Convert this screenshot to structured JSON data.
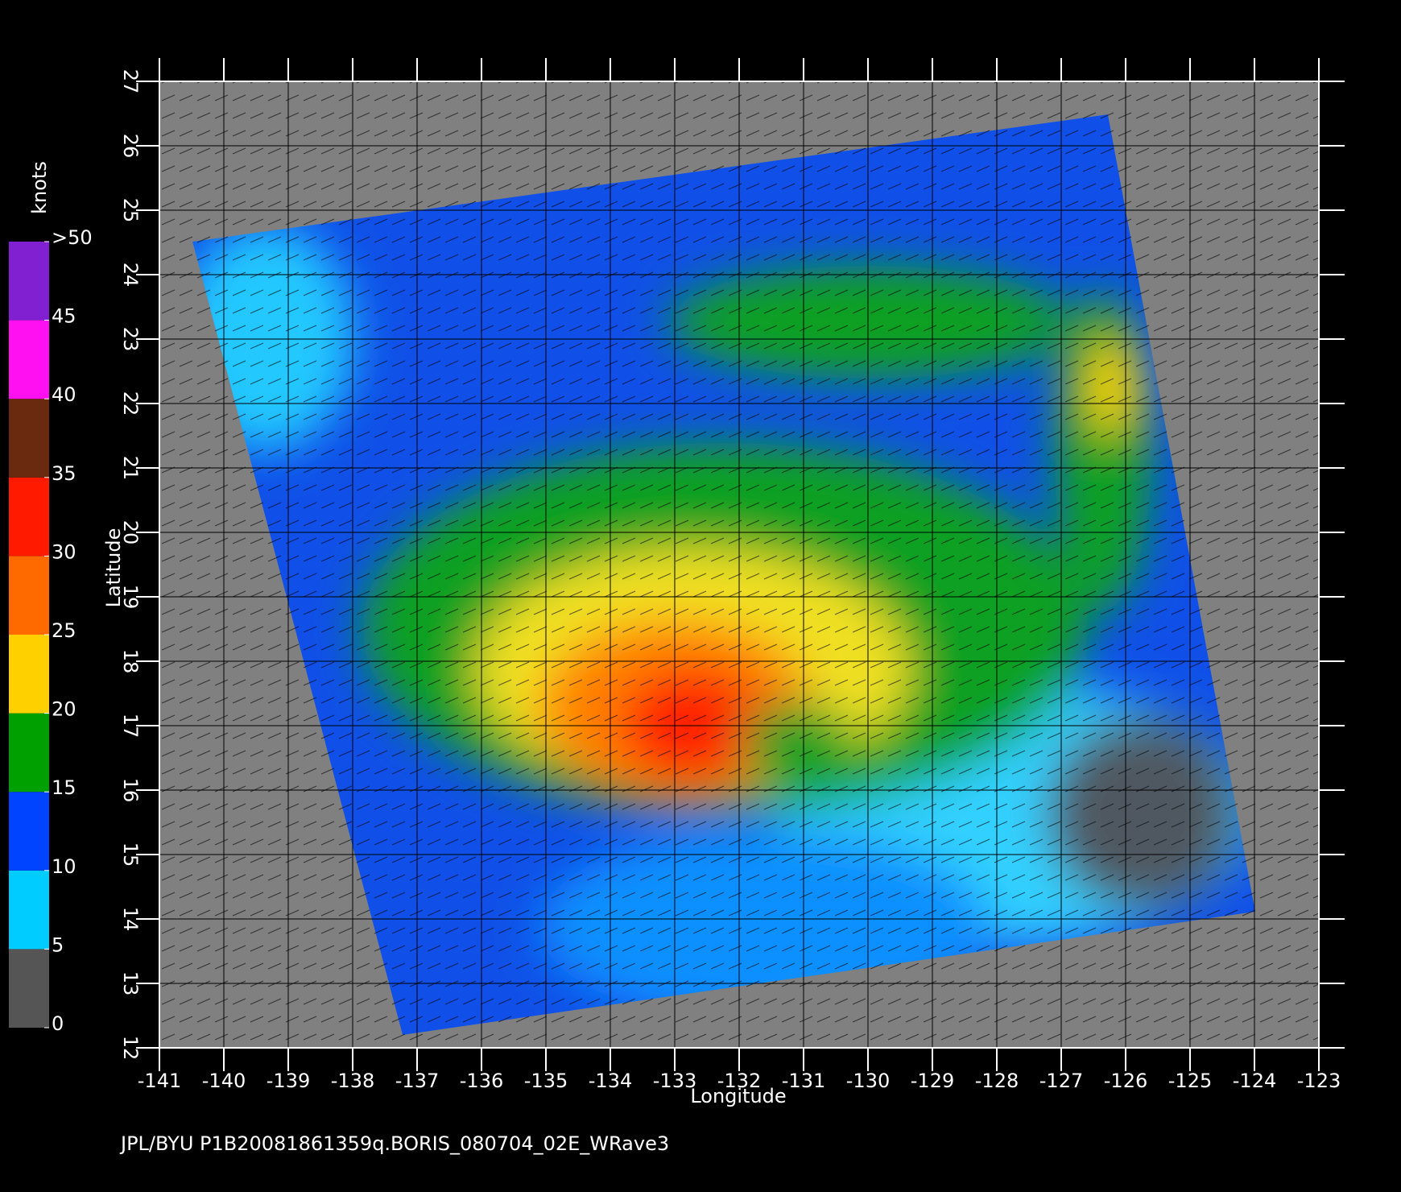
{
  "chart_data": {
    "type": "map",
    "xlabel": "Longitude",
    "ylabel": "Latitude",
    "xlim": [
      -141,
      -123
    ],
    "ylim": [
      12,
      27
    ],
    "xticks": [
      -141,
      -140,
      -139,
      -138,
      -137,
      -136,
      -135,
      -134,
      -133,
      -132,
      -131,
      -130,
      -129,
      -128,
      -127,
      -126,
      -125,
      -124,
      -123
    ],
    "yticks": [
      12,
      13,
      14,
      15,
      16,
      17,
      18,
      19,
      20,
      21,
      22,
      23,
      24,
      25,
      26,
      27
    ],
    "grid": true,
    "colorbar": {
      "label": "knots",
      "ticks": [
        0,
        5,
        10,
        15,
        20,
        25,
        30,
        35,
        40,
        45,
        {
          "value": 50,
          "label": ">50"
        }
      ],
      "colors": [
        "#555555",
        "#00ccff",
        "#0044ff",
        "#00a000",
        "#ffd000",
        "#ff6a00",
        "#ff1a00",
        "#6a2a10",
        "#ff10f0",
        "#8020d0"
      ]
    },
    "footer": "JPL/BYU  P1B20081861359q.BORIS_080704_02E_WRave3"
  }
}
